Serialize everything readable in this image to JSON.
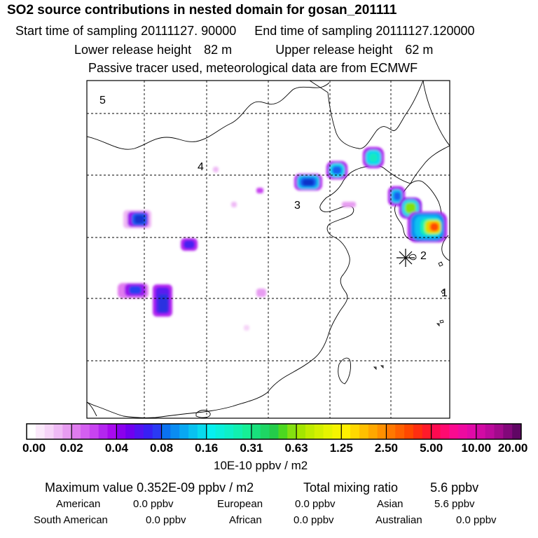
{
  "header": {
    "title": "SO2 source contributions in nested domain for gosan_201111",
    "start_label": "Start time of sampling",
    "start_value": "20111127. 90000",
    "end_label": "End time of sampling",
    "end_value": "20111127.120000",
    "lower_label": "Lower release height",
    "lower_value": "82 m",
    "upper_label": "Upper release height",
    "upper_value": "62 m",
    "note": "Passive tracer used, meteorological data are from ECMWF"
  },
  "map": {
    "markers": [
      {
        "id": "1",
        "label": "1"
      },
      {
        "id": "2",
        "label": "2"
      },
      {
        "id": "3",
        "label": "3"
      },
      {
        "id": "4",
        "label": "4"
      },
      {
        "id": "5",
        "label": "5"
      }
    ],
    "receptor_icon": "star-cross-icon"
  },
  "colorbar": {
    "ticks": [
      "0.00",
      "0.02",
      "0.04",
      "0.08",
      "0.16",
      "0.31",
      "0.63",
      "1.25",
      "2.50",
      "5.00",
      "10.00",
      "20.00"
    ],
    "colors": [
      [
        "#ffffff",
        "#fbe9fb",
        "#f6d4f8",
        "#efbaf5",
        "#e79cf1"
      ],
      [
        "#e07cef",
        "#d45ff0",
        "#c843f0",
        "#b426ef",
        "#a80aee"
      ],
      [
        "#8a00ee",
        "#6f00f0",
        "#5212f2",
        "#3820f4",
        "#2a3af4"
      ],
      [
        "#0a72f0",
        "#0a8cf2",
        "#08a8f2",
        "#08c2f0",
        "#08daee"
      ],
      [
        "#06f0f0",
        "#0af0dc",
        "#0ef0c8",
        "#12f0b0",
        "#16f096"
      ],
      [
        "#18e07c",
        "#1ed664",
        "#24cc4a",
        "#4cd820",
        "#84e010"
      ],
      [
        "#a4e600",
        "#c0ec00",
        "#d4f000",
        "#e6f400",
        "#f6f400"
      ],
      [
        "#fff000",
        "#ffd800",
        "#ffc000",
        "#ffa800",
        "#ff9000"
      ],
      [
        "#ff7800",
        "#ff6000",
        "#ff4800",
        "#ff2e10",
        "#ff1a2a"
      ],
      [
        "#ff0a50",
        "#ff0a70",
        "#fa0a90",
        "#ee0aa0",
        "#e00aa8"
      ],
      [
        "#d20aa4",
        "#bc0a9c",
        "#a20a8c",
        "#82087a",
        "#600664"
      ]
    ],
    "unit": "10E-10 ppbv / m2"
  },
  "summary": {
    "max_label": "Maximum value",
    "max_value": "0.352E-09 ppbv / m2",
    "total_label": "Total mixing ratio",
    "total_value": "5.6 ppbv",
    "regions": [
      {
        "name": "American",
        "value": "0.0 ppbv"
      },
      {
        "name": "European",
        "value": "0.0 ppbv"
      },
      {
        "name": "Asian",
        "value": "5.6 ppbv"
      },
      {
        "name": "South American",
        "value": "0.0 ppbv"
      },
      {
        "name": "African",
        "value": "0.0 ppbv"
      },
      {
        "name": "Australian",
        "value": "0.0 ppbv"
      }
    ]
  }
}
